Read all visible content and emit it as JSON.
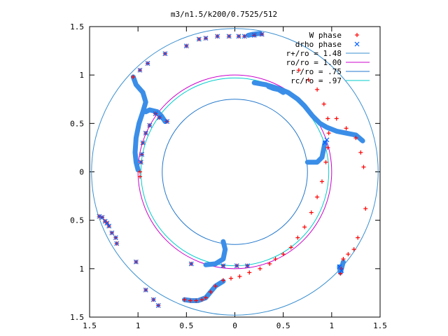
{
  "chart_data": {
    "type": "scatter",
    "title": "m3/n1.5/k200/0.7525/512",
    "xlim": [
      -1.5,
      1.5
    ],
    "ylim": [
      -1.5,
      1.5
    ],
    "xticks": [
      -1.5,
      -1,
      -0.5,
      0,
      0.5,
      1,
      1.5
    ],
    "yticks": [
      -1.5,
      -1,
      -0.5,
      0,
      0.5,
      1,
      1.5
    ],
    "xtick_labels": [
      "1.5",
      "1",
      "0.5",
      "0",
      "0.5",
      "1",
      "1.5"
    ],
    "ytick_labels": [
      "1.5",
      "1",
      "0.5",
      "0",
      "0.5",
      "1",
      "1.5"
    ],
    "grid": false,
    "legend_position": "top-right",
    "series": [
      {
        "name": "W phase",
        "kind": "points",
        "marker": "+",
        "color": "#ff0000",
        "points": [
          [
            -1.4,
            -0.46
          ],
          [
            -1.37,
            -0.47
          ],
          [
            -1.34,
            -0.51
          ],
          [
            -1.32,
            -0.53
          ],
          [
            -1.3,
            -0.56
          ],
          [
            -1.27,
            -0.63
          ],
          [
            -1.23,
            -0.68
          ],
          [
            -1.22,
            -0.74
          ],
          [
            -1.02,
            -0.93
          ],
          [
            -0.92,
            -1.22
          ],
          [
            -0.84,
            -1.32
          ],
          [
            -0.79,
            -1.38
          ],
          [
            -0.52,
            -1.32
          ],
          [
            -0.46,
            -1.33
          ],
          [
            -0.4,
            -1.33
          ],
          [
            -0.34,
            -1.32
          ],
          [
            -0.3,
            -1.3
          ],
          [
            -0.25,
            -1.24
          ],
          [
            -0.2,
            -1.18
          ],
          [
            -0.12,
            -1.12
          ],
          [
            -0.04,
            -1.1
          ],
          [
            0.05,
            -1.08
          ],
          [
            0.15,
            -1.04
          ],
          [
            0.26,
            -1.0
          ],
          [
            0.36,
            -0.95
          ],
          [
            0.42,
            -0.9
          ],
          [
            0.5,
            -0.85
          ],
          [
            0.58,
            -0.78
          ],
          [
            0.65,
            -0.68
          ],
          [
            0.72,
            -0.57
          ],
          [
            0.79,
            -0.42
          ],
          [
            0.85,
            -0.26
          ],
          [
            0.9,
            -0.1
          ],
          [
            0.94,
            0.1
          ],
          [
            0.96,
            0.25
          ],
          [
            0.97,
            0.4
          ],
          [
            0.96,
            0.55
          ],
          [
            0.92,
            0.7
          ],
          [
            0.85,
            0.85
          ],
          [
            0.76,
            0.95
          ],
          [
            0.66,
            1.05
          ],
          [
            1.05,
            0.55
          ],
          [
            1.15,
            0.45
          ],
          [
            1.25,
            0.35
          ],
          [
            1.3,
            0.2
          ],
          [
            1.33,
            0.05
          ],
          [
            1.35,
            -0.38
          ],
          [
            1.27,
            -0.68
          ],
          [
            1.23,
            -0.8
          ],
          [
            1.17,
            -0.85
          ],
          [
            1.12,
            -0.9
          ],
          [
            1.1,
            -1.0
          ],
          [
            1.09,
            -1.05
          ],
          [
            0.28,
            1.42
          ],
          [
            0.2,
            1.41
          ],
          [
            0.1,
            1.4
          ],
          [
            0.04,
            1.4
          ],
          [
            -0.06,
            1.4
          ],
          [
            -0.18,
            1.4
          ],
          [
            -0.3,
            1.38
          ],
          [
            -0.37,
            1.37
          ],
          [
            -0.5,
            1.3
          ],
          [
            -0.72,
            1.22
          ],
          [
            -0.9,
            1.12
          ],
          [
            -0.98,
            1.05
          ],
          [
            -1.05,
            0.98
          ],
          [
            -0.7,
            0.52
          ],
          [
            -0.78,
            0.56
          ],
          [
            -0.82,
            0.6
          ],
          [
            -0.88,
            0.48
          ],
          [
            -0.92,
            0.4
          ],
          [
            -0.95,
            0.3
          ],
          [
            -0.96,
            0.18
          ],
          [
            -0.97,
            0.1
          ],
          [
            -0.98,
            0.0
          ],
          [
            -0.98,
            -0.05
          ],
          [
            -0.45,
            -0.95
          ],
          [
            -0.12,
            -0.97
          ],
          [
            0.02,
            -0.97
          ],
          [
            0.13,
            -0.97
          ]
        ]
      },
      {
        "name": "drho phase",
        "kind": "points",
        "marker": "x",
        "color": "#0060ff",
        "points": [
          [
            -1.4,
            -0.46
          ],
          [
            -1.37,
            -0.47
          ],
          [
            -1.34,
            -0.51
          ],
          [
            -1.32,
            -0.53
          ],
          [
            -1.3,
            -0.56
          ],
          [
            -1.27,
            -0.63
          ],
          [
            -1.23,
            -0.68
          ],
          [
            -1.22,
            -0.74
          ],
          [
            -1.02,
            -0.93
          ],
          [
            -0.92,
            -1.22
          ],
          [
            -0.84,
            -1.32
          ],
          [
            -0.79,
            -1.38
          ],
          [
            0.28,
            1.42
          ],
          [
            0.2,
            1.41
          ],
          [
            0.1,
            1.4
          ],
          [
            0.04,
            1.4
          ],
          [
            -0.06,
            1.4
          ],
          [
            -0.18,
            1.4
          ],
          [
            -0.3,
            1.38
          ],
          [
            -0.37,
            1.37
          ],
          [
            -0.5,
            1.3
          ],
          [
            -0.72,
            1.22
          ],
          [
            -0.9,
            1.12
          ],
          [
            -0.98,
            1.05
          ],
          [
            -0.7,
            0.52
          ],
          [
            -0.78,
            0.56
          ],
          [
            -0.82,
            0.6
          ],
          [
            -0.88,
            0.48
          ],
          [
            -0.92,
            0.4
          ],
          [
            -0.95,
            0.3
          ],
          [
            -0.96,
            0.18
          ],
          [
            -0.97,
            0.1
          ],
          [
            -0.45,
            -0.95
          ],
          [
            -0.12,
            -0.97
          ],
          [
            0.02,
            -0.97
          ],
          [
            0.13,
            -0.97
          ],
          [
            1.08,
            -0.98
          ],
          [
            1.1,
            -1.02
          ],
          [
            0.93,
            0.3
          ],
          [
            0.95,
            0.33
          ]
        ]
      },
      {
        "name": "drho phase band",
        "kind": "band",
        "color": "#3a8ee8",
        "segments": [
          [
            [
              -1.0,
              0.02
            ],
            [
              -1.02,
              0.1
            ],
            [
              -1.03,
              0.2
            ],
            [
              -1.02,
              0.35
            ],
            [
              -0.99,
              0.5
            ],
            [
              -0.95,
              0.62
            ],
            [
              -0.92,
              0.72
            ],
            [
              -0.95,
              0.82
            ],
            [
              -1.02,
              0.9
            ],
            [
              -1.05,
              0.98
            ]
          ],
          [
            [
              -0.72,
              0.52
            ],
            [
              -0.76,
              0.58
            ],
            [
              -0.8,
              0.62
            ],
            [
              -0.88,
              0.64
            ],
            [
              -0.92,
              0.62
            ]
          ],
          [
            [
              0.26,
              1.43
            ],
            [
              0.18,
              1.42
            ],
            [
              0.14,
              1.41
            ]
          ],
          [
            [
              0.2,
              0.92
            ],
            [
              0.32,
              0.9
            ],
            [
              0.45,
              0.86
            ],
            [
              0.55,
              0.82
            ],
            [
              0.65,
              0.75
            ],
            [
              0.72,
              0.68
            ],
            [
              0.8,
              0.58
            ],
            [
              0.88,
              0.5
            ],
            [
              0.95,
              0.46
            ],
            [
              1.05,
              0.42
            ],
            [
              1.15,
              0.4
            ],
            [
              1.25,
              0.38
            ],
            [
              1.32,
              0.32
            ]
          ],
          [
            [
              0.35,
              0.88
            ],
            [
              0.4,
              0.86
            ],
            [
              0.45,
              0.85
            ],
            [
              0.5,
              0.82
            ]
          ],
          [
            [
              0.93,
              0.3
            ],
            [
              0.9,
              0.15
            ],
            [
              0.85,
              0.1
            ],
            [
              0.75,
              0.1
            ]
          ],
          [
            [
              -0.12,
              -0.72
            ],
            [
              -0.1,
              -0.8
            ],
            [
              -0.12,
              -0.9
            ],
            [
              -0.2,
              -0.95
            ],
            [
              -0.3,
              -0.96
            ]
          ],
          [
            [
              -0.52,
              -1.32
            ],
            [
              -0.45,
              -1.33
            ],
            [
              -0.38,
              -1.33
            ],
            [
              -0.3,
              -1.3
            ],
            [
              -0.25,
              -1.24
            ],
            [
              -0.2,
              -1.18
            ],
            [
              -0.12,
              -1.13
            ]
          ],
          [
            [
              1.08,
              -0.98
            ],
            [
              1.09,
              -1.04
            ],
            [
              1.12,
              -0.93
            ]
          ]
        ]
      },
      {
        "name": "r+/ro = 1.48",
        "kind": "circle",
        "radius": 1.48,
        "color": "#3a8fd0"
      },
      {
        "name": "ro/ro = 1.00",
        "kind": "circle",
        "radius": 1.0,
        "color": "#cc00cc"
      },
      {
        "name": "r-/ro = .75",
        "kind": "circle",
        "radius": 0.75,
        "color": "#2277cc"
      },
      {
        "name": "rc/ro = .97",
        "kind": "circle",
        "radius": 0.97,
        "color": "#00cccc"
      }
    ]
  }
}
